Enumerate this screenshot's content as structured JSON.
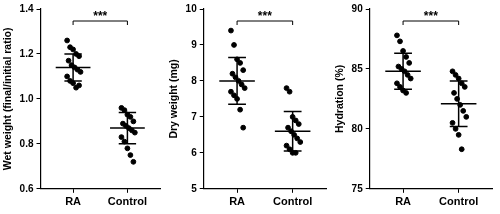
{
  "chart_data": [
    {
      "type": "scatter",
      "ylabel": "Wet weight (final/initial ratio)",
      "categories": [
        "RA",
        "Control"
      ],
      "values": [
        [
          1.26,
          1.23,
          1.22,
          1.2,
          1.19,
          1.17,
          1.15,
          1.14,
          1.13,
          1.12,
          1.1,
          1.08,
          1.07,
          1.05,
          1.06
        ],
        [
          0.96,
          0.95,
          0.93,
          0.92,
          0.9,
          0.89,
          0.88,
          0.87,
          0.86,
          0.85,
          0.83,
          0.81,
          0.78,
          0.75,
          0.72
        ]
      ],
      "mean": [
        1.14,
        0.87
      ],
      "sd": [
        0.06,
        0.07
      ],
      "annotation": "***",
      "ylim": [
        0.6,
        1.4
      ],
      "yticks": [
        0.6,
        0.8,
        {
          "value": 1,
          "label": "1.0"
        },
        1.2,
        1.4
      ],
      "color": "#000000",
      "marker": "circle",
      "grid": false
    },
    {
      "type": "scatter",
      "ylabel": "Dry weight (mg)",
      "categories": [
        "RA",
        "Control"
      ],
      "values": [
        [
          9.4,
          9.0,
          8.6,
          8.5,
          8.3,
          8.2,
          8.1,
          8.0,
          7.9,
          7.8,
          7.7,
          7.6,
          7.5,
          7.2,
          6.7
        ],
        [
          7.8,
          7.7,
          7.0,
          6.9,
          6.8,
          6.7,
          6.6,
          6.5,
          6.4,
          6.3,
          6.2,
          6.1,
          6.0,
          6.0
        ]
      ],
      "mean": [
        8.0,
        6.6
      ],
      "sd": [
        0.65,
        0.55
      ],
      "annotation": "***",
      "ylim": [
        5,
        10
      ],
      "yticks": [
        5,
        6,
        7,
        8,
        9,
        10
      ],
      "color": "#000000",
      "marker": "circle",
      "grid": false
    },
    {
      "type": "scatter",
      "ylabel": "Hydration (%)",
      "categories": [
        "RA",
        "Control"
      ],
      "values": [
        [
          87.8,
          87.3,
          86.5,
          86.0,
          85.5,
          85.2,
          85.0,
          84.8,
          84.5,
          84.2,
          83.8,
          83.5,
          83.2,
          83.0
        ],
        [
          84.8,
          84.5,
          84.2,
          83.8,
          83.5,
          83.0,
          82.5,
          82.0,
          81.5,
          81.0,
          80.5,
          80.0,
          79.5,
          78.3
        ]
      ],
      "mean": [
        84.8,
        82.1
      ],
      "sd": [
        1.5,
        1.9
      ],
      "annotation": "***",
      "ylim": [
        75,
        90
      ],
      "yticks": [
        75,
        80,
        85,
        90
      ],
      "color": "#000000",
      "marker": "circle",
      "grid": false
    }
  ]
}
